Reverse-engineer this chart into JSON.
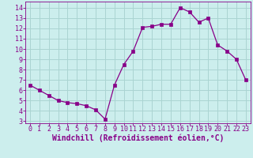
{
  "x": [
    0,
    1,
    2,
    3,
    4,
    5,
    6,
    7,
    8,
    9,
    10,
    11,
    12,
    13,
    14,
    15,
    16,
    17,
    18,
    19,
    20,
    21,
    22,
    23
  ],
  "y": [
    6.5,
    6.0,
    5.5,
    5.0,
    4.8,
    4.7,
    4.5,
    4.1,
    3.2,
    6.5,
    8.5,
    9.8,
    12.1,
    12.2,
    12.4,
    12.4,
    14.0,
    13.6,
    12.6,
    13.0,
    10.4,
    9.8,
    9.0,
    7.0
  ],
  "line_color": "#880088",
  "marker": "s",
  "marker_size": 2.2,
  "bg_color": "#cceeed",
  "grid_color": "#aad4d2",
  "xlabel": "Windchill (Refroidissement éolien,°C)",
  "xlabel_color": "#880088",
  "xlabel_fontsize": 7.0,
  "tick_color": "#880088",
  "tick_fontsize": 6.0,
  "ylim": [
    2.8,
    14.6
  ],
  "xlim": [
    -0.5,
    23.5
  ],
  "yticks": [
    3,
    4,
    5,
    6,
    7,
    8,
    9,
    10,
    11,
    12,
    13,
    14
  ],
  "xticks": [
    0,
    1,
    2,
    3,
    4,
    5,
    6,
    7,
    8,
    9,
    10,
    11,
    12,
    13,
    14,
    15,
    16,
    17,
    18,
    19,
    20,
    21,
    22,
    23
  ]
}
